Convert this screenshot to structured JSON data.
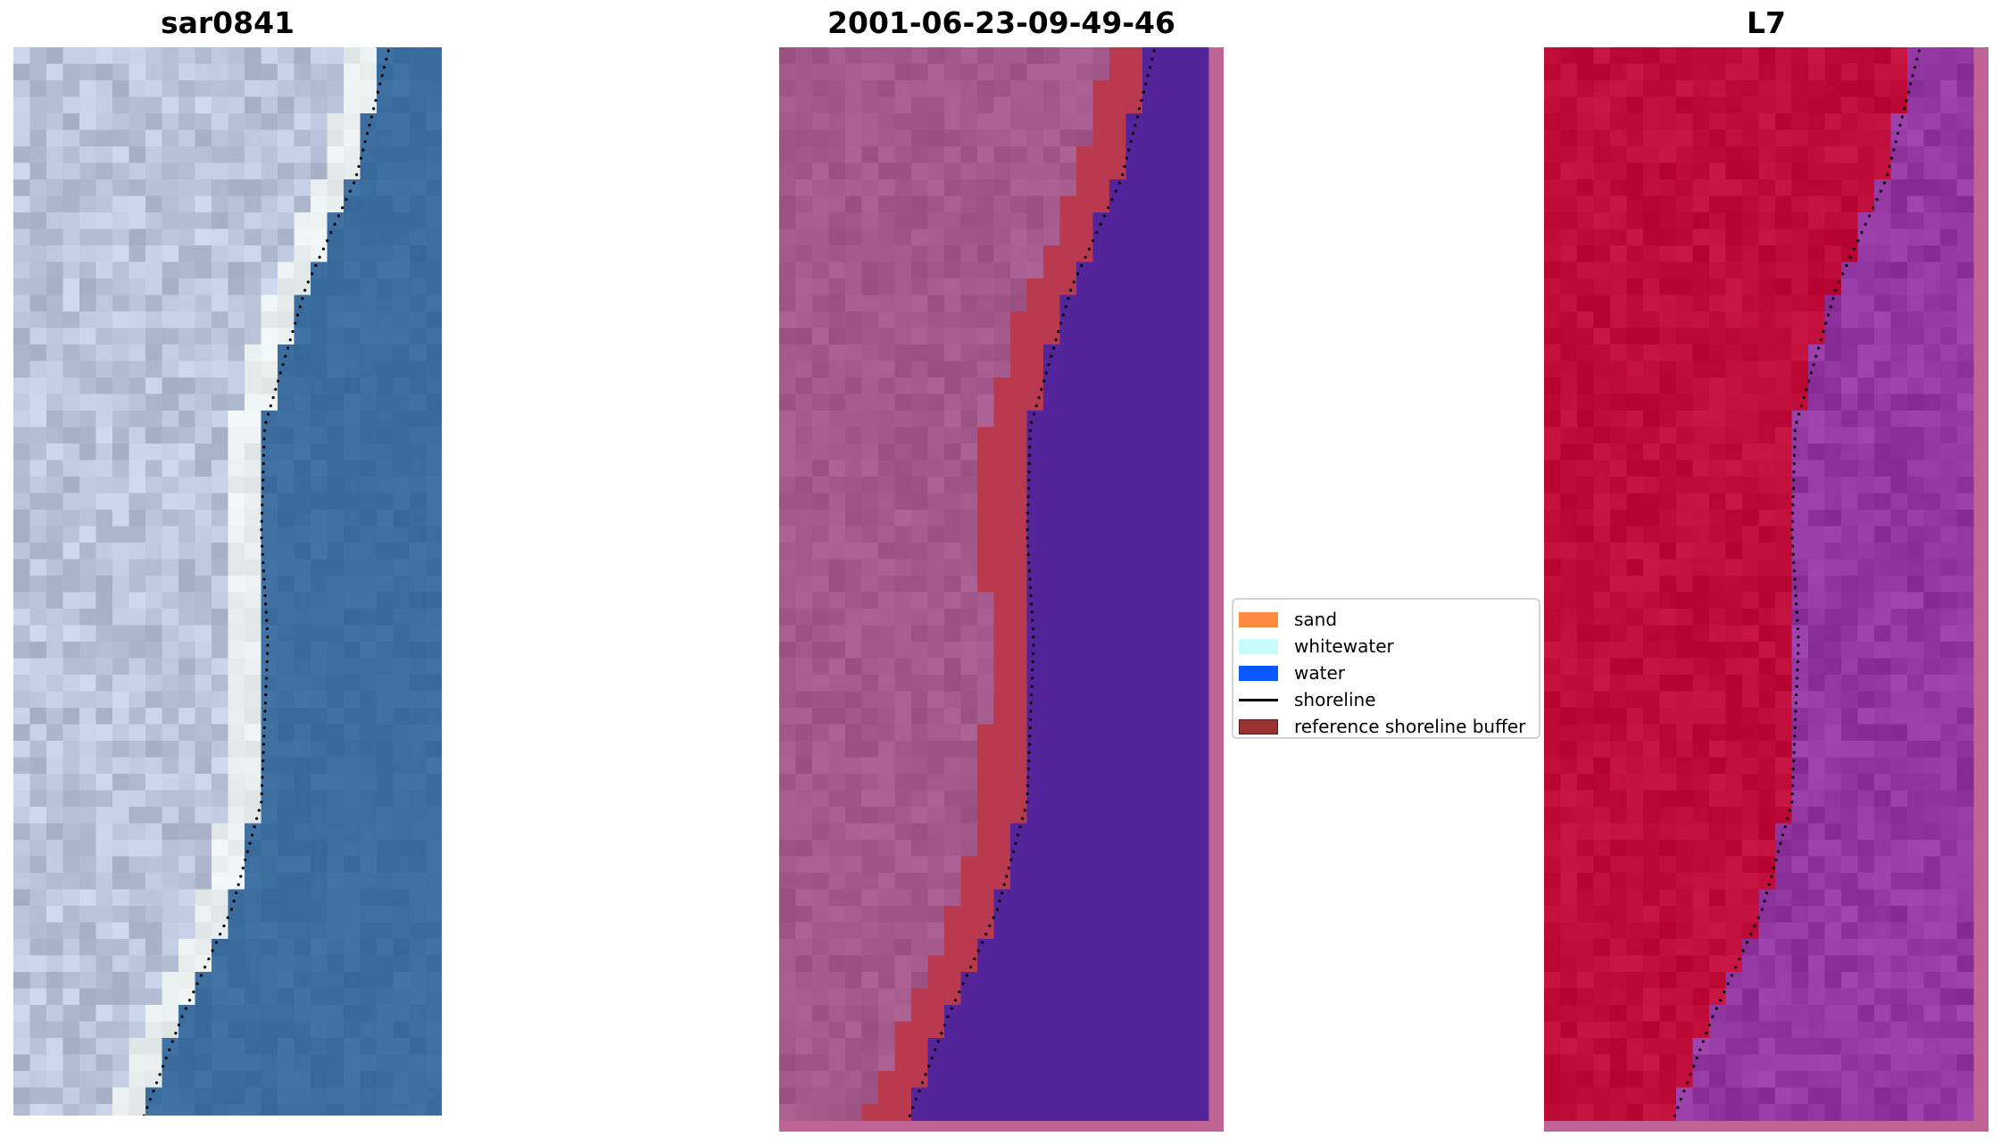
{
  "panels": {
    "left": {
      "title": "sar0841"
    },
    "middle": {
      "title": "2001-06-23-09-49-46"
    },
    "right": {
      "title": "L7"
    }
  },
  "legend": {
    "items": [
      {
        "label": "sand",
        "color": "#ff8a3d",
        "kind": "patch"
      },
      {
        "label": "whitewater",
        "color": "#c6fbfb",
        "kind": "patch"
      },
      {
        "label": "water",
        "color": "#0a58ff",
        "kind": "patch"
      },
      {
        "label": "shoreline",
        "color": "#000000",
        "kind": "line"
      },
      {
        "label": "reference shoreline buffer",
        "color": "#9b3232",
        "kind": "patch"
      }
    ]
  },
  "colors": {
    "sea_rgb": "#3c6e9f",
    "land_rgb": "#b9c3da",
    "classified_land": "#a35a8b",
    "classified_water": "#54249a",
    "buffer": "#b93a4e",
    "mndwi_land": "#c00c39",
    "mndwi_water": "#9337a2",
    "padding_pink": "#c06496"
  }
}
